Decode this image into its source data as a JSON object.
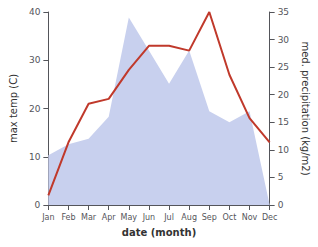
{
  "chart_data": {
    "type": "line",
    "xlabel": "date (month)",
    "ylabel": "max temp (C)",
    "y2label": "med. precipitation (kg/m2)",
    "categories": [
      "Jan",
      "Feb",
      "Mar",
      "Apr",
      "May",
      "Jun",
      "Jul",
      "Aug",
      "Sep",
      "Oct",
      "Nov",
      "Dec"
    ],
    "series": [
      {
        "type": "area",
        "axis": "y2",
        "color": "#c8d0ee",
        "values": [
          9,
          11,
          12,
          16,
          34,
          28,
          22,
          28,
          17,
          15,
          17,
          0
        ]
      },
      {
        "type": "line",
        "color": "#c0392b",
        "values": [
          2,
          13,
          21,
          22,
          28,
          33,
          33,
          32,
          40,
          27,
          18,
          13
        ]
      }
    ],
    "ylim": [
      0,
      40
    ],
    "yticks": [
      0,
      10,
      20,
      30,
      40
    ],
    "y2lim": [
      0,
      35
    ],
    "y2ticks": [
      0,
      5,
      10,
      15,
      20,
      25,
      30,
      35
    ],
    "grid": false
  }
}
